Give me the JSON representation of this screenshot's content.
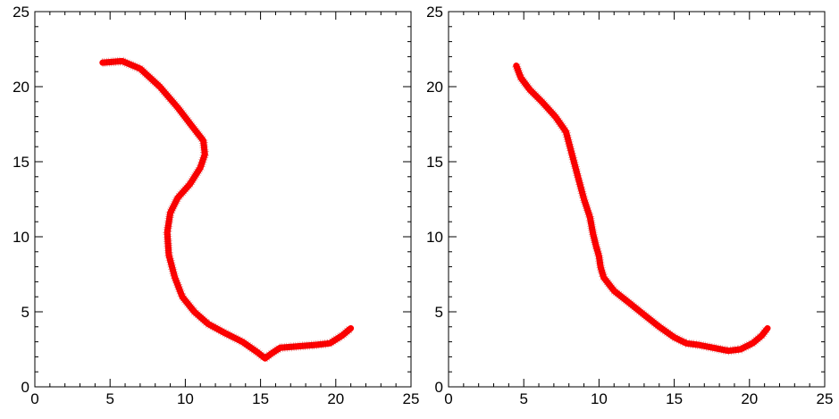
{
  "chart_data": [
    {
      "type": "line",
      "xlim": [
        0,
        25
      ],
      "ylim": [
        0,
        25
      ],
      "xticks": [
        "0",
        "5",
        "10",
        "15",
        "20",
        "25"
      ],
      "yticks": [
        "0",
        "5",
        "10",
        "15",
        "20",
        "25"
      ],
      "grid": false,
      "color": "#ff0000",
      "series": [
        {
          "x": [
            4.5,
            5.8,
            7.0,
            8.3,
            9.5,
            10.5,
            11.2,
            11.3,
            11.0,
            10.3,
            9.5,
            9.0,
            8.8,
            8.9,
            9.3,
            9.8,
            10.6,
            11.5,
            12.6,
            13.8,
            14.8,
            15.3,
            15.7,
            16.3,
            17.5,
            18.7,
            19.6,
            20.4,
            21.0
          ],
          "y": [
            21.6,
            21.7,
            21.2,
            20.0,
            18.6,
            17.3,
            16.4,
            15.5,
            14.6,
            13.5,
            12.6,
            11.6,
            10.3,
            8.8,
            7.3,
            6.0,
            5.0,
            4.2,
            3.6,
            3.0,
            2.3,
            1.9,
            2.2,
            2.6,
            2.7,
            2.8,
            2.9,
            3.4,
            3.9
          ]
        }
      ]
    },
    {
      "type": "line",
      "xlim": [
        0,
        25
      ],
      "ylim": [
        0,
        25
      ],
      "xticks": [
        "0",
        "5",
        "10",
        "15",
        "20",
        "25"
      ],
      "yticks": [
        "0",
        "5",
        "10",
        "15",
        "20",
        "25"
      ],
      "grid": false,
      "color": "#ff0000",
      "series": [
        {
          "x": [
            4.5,
            4.8,
            5.4,
            6.2,
            7.1,
            7.8,
            8.2,
            8.6,
            9.0,
            9.4,
            9.6,
            9.8,
            10.0,
            10.1,
            10.3,
            11.0,
            12.0,
            13.0,
            14.0,
            15.0,
            15.8,
            16.6,
            17.6,
            18.6,
            19.4,
            20.2,
            20.8,
            21.2
          ],
          "y": [
            21.4,
            20.6,
            19.8,
            19.0,
            18.0,
            17.0,
            15.5,
            14.0,
            12.5,
            11.3,
            10.2,
            9.4,
            8.7,
            8.0,
            7.3,
            6.4,
            5.6,
            4.8,
            4.0,
            3.3,
            2.9,
            2.8,
            2.6,
            2.4,
            2.5,
            2.9,
            3.4,
            3.9
          ]
        }
      ]
    }
  ]
}
